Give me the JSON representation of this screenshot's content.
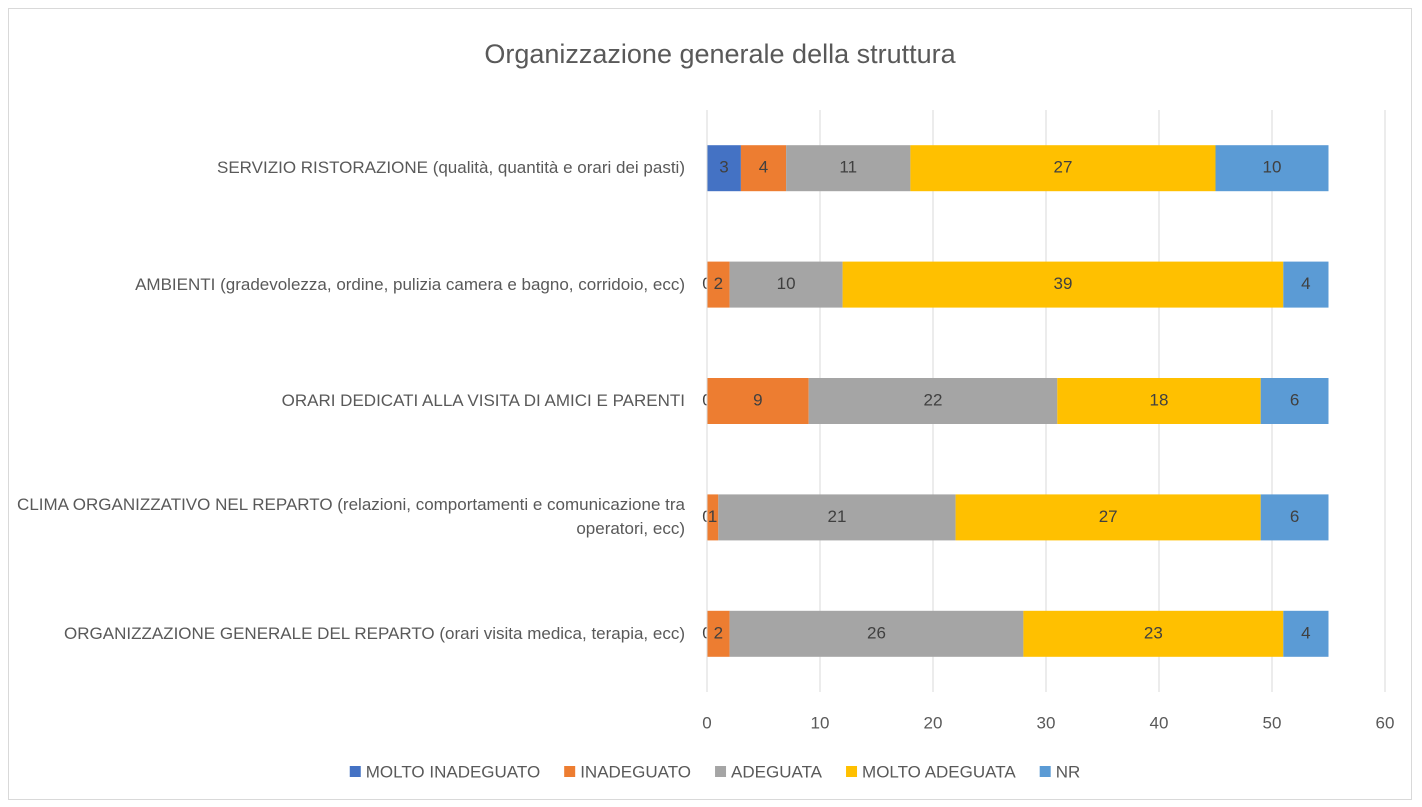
{
  "chart_data": {
    "type": "stacked-bar-horizontal",
    "title": "Organizzazione generale della struttura",
    "categories": [
      "SERVIZIO RISTORAZIONE (qualità, quantità e orari dei pasti)",
      "AMBIENTI (gradevolezza, ordine, pulizia camera e bagno, corridoio, ecc)",
      "ORARI DEDICATI ALLA VISITA DI AMICI E PARENTI",
      "CLIMA ORGANIZZATIVO NEL REPARTO (relazioni, comportamenti e comunicazione tra operatori, ecc)",
      "ORGANIZZAZIONE GENERALE DEL REPARTO (orari visita medica, terapia, ecc)"
    ],
    "series": [
      {
        "name": "MOLTO INADEGUATO",
        "color": "#4472c4",
        "values": [
          3,
          0,
          0,
          0,
          0
        ]
      },
      {
        "name": "INADEGUATO",
        "color": "#ed7d31",
        "values": [
          4,
          2,
          9,
          1,
          2
        ]
      },
      {
        "name": "ADEGUATA",
        "color": "#a5a5a5",
        "values": [
          11,
          10,
          22,
          21,
          26
        ]
      },
      {
        "name": "MOLTO ADEGUATA",
        "color": "#ffc000",
        "values": [
          27,
          39,
          18,
          27,
          23
        ]
      },
      {
        "name": "NR",
        "color": "#5b9bd5",
        "values": [
          10,
          4,
          6,
          6,
          4
        ]
      }
    ],
    "xlim": [
      0,
      60
    ],
    "xticks": [
      0,
      10,
      20,
      30,
      40,
      50,
      60
    ],
    "grid": true,
    "legend": "bottom"
  }
}
